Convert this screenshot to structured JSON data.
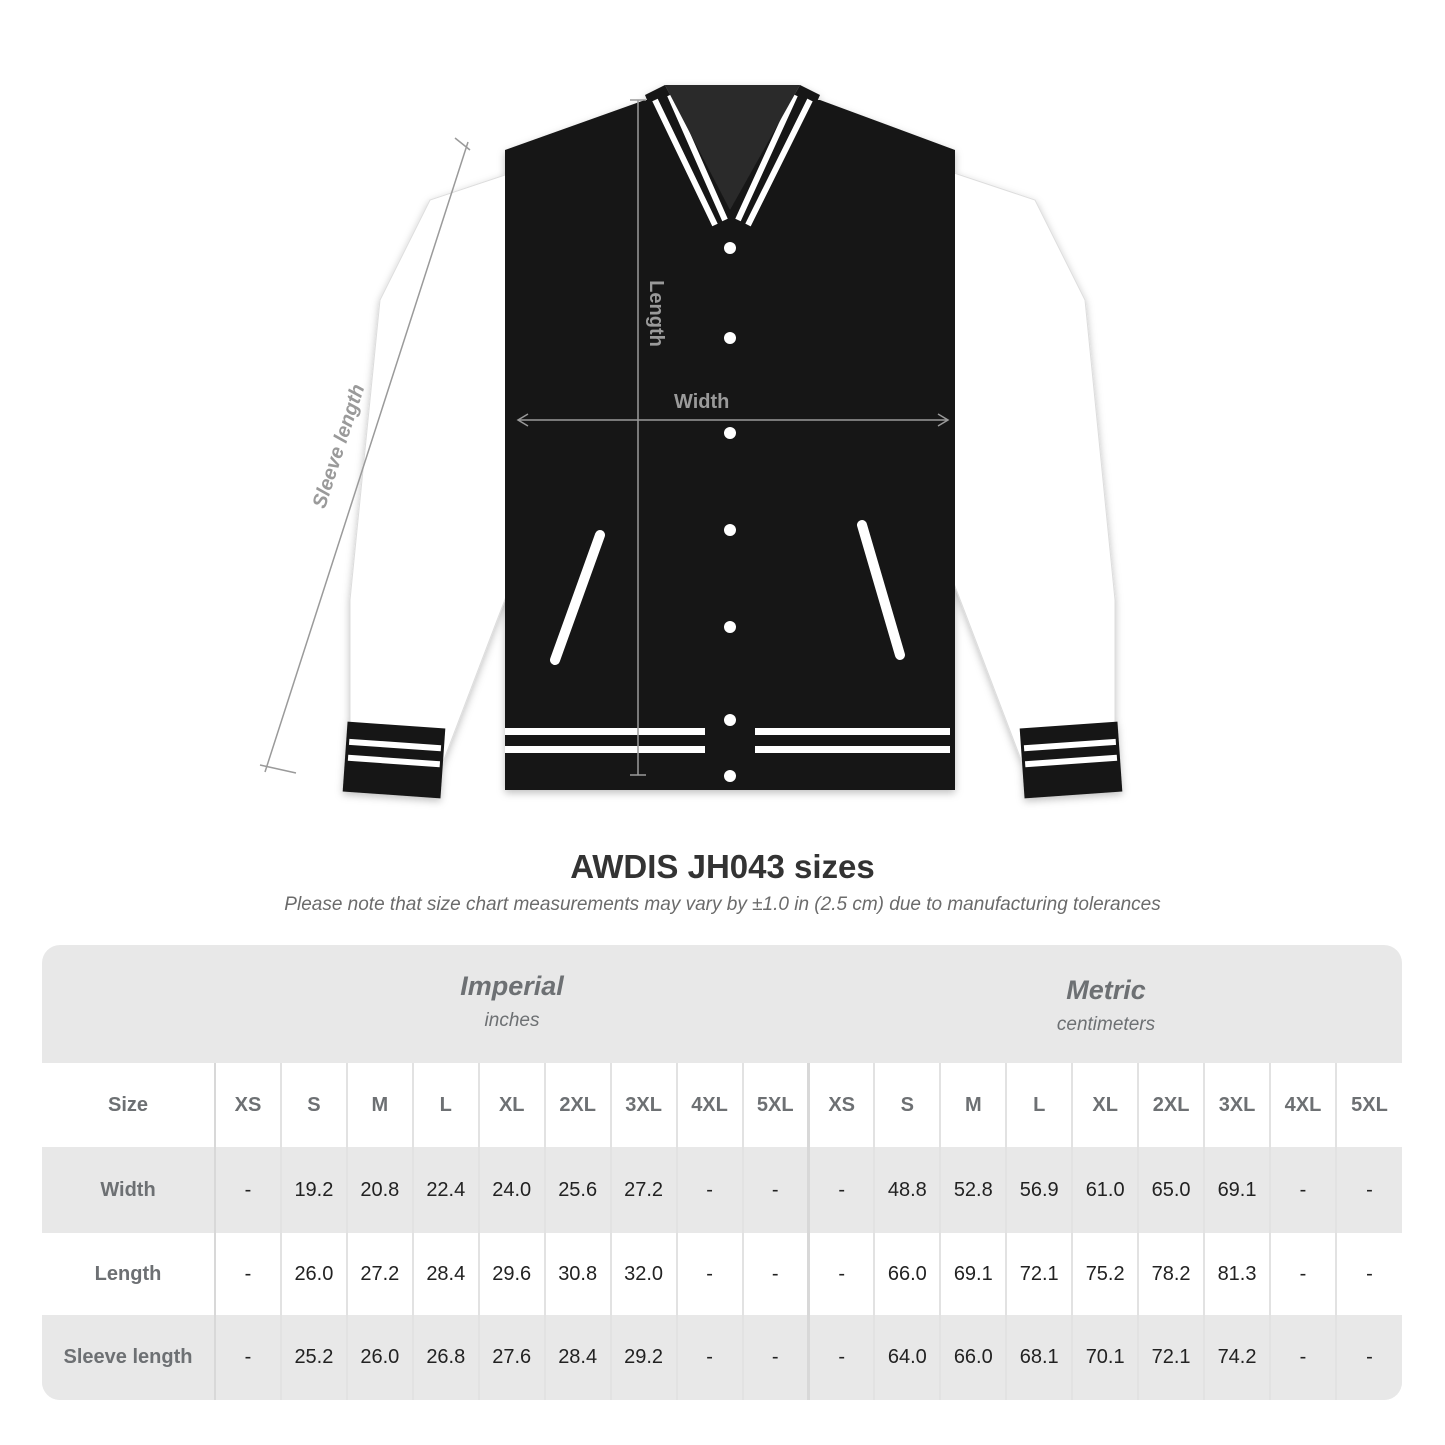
{
  "image": {
    "measure_labels": {
      "length": "Length",
      "width": "Width",
      "sleeve": "Sleeve length"
    }
  },
  "title": "AWDIS JH043 sizes",
  "note": "Please note that size chart measurements may vary by ±1.0 in (2.5 cm) due to manufacturing tolerances",
  "table": {
    "imperial": {
      "name": "Imperial",
      "unit": "inches"
    },
    "metric": {
      "name": "Metric",
      "unit": "centimeters"
    },
    "size_label": "Size",
    "sizes": [
      "XS",
      "S",
      "M",
      "L",
      "XL",
      "2XL",
      "3XL",
      "4XL",
      "5XL"
    ],
    "rows": [
      {
        "label": "Width",
        "imperial": [
          "-",
          "19.2",
          "20.8",
          "22.4",
          "24.0",
          "25.6",
          "27.2",
          "-",
          "-"
        ],
        "metric": [
          "-",
          "48.8",
          "52.8",
          "56.9",
          "61.0",
          "65.0",
          "69.1",
          "-",
          "-"
        ]
      },
      {
        "label": "Length",
        "imperial": [
          "-",
          "26.0",
          "27.2",
          "28.4",
          "29.6",
          "30.8",
          "32.0",
          "-",
          "-"
        ],
        "metric": [
          "-",
          "66.0",
          "69.1",
          "72.1",
          "75.2",
          "78.2",
          "81.3",
          "-",
          "-"
        ]
      },
      {
        "label": "Sleeve length",
        "imperial": [
          "-",
          "25.2",
          "26.0",
          "26.8",
          "27.6",
          "28.4",
          "29.2",
          "-",
          "-"
        ],
        "metric": [
          "-",
          "64.0",
          "66.0",
          "68.1",
          "70.1",
          "72.1",
          "74.2",
          "-",
          "-"
        ]
      }
    ]
  },
  "colors": {
    "jacket_body": "#151515",
    "sleeves": "#ffffff",
    "measure_line": "#9a9a9a",
    "table_bg": "#e8e8e8",
    "header_text": "#6d7073"
  }
}
